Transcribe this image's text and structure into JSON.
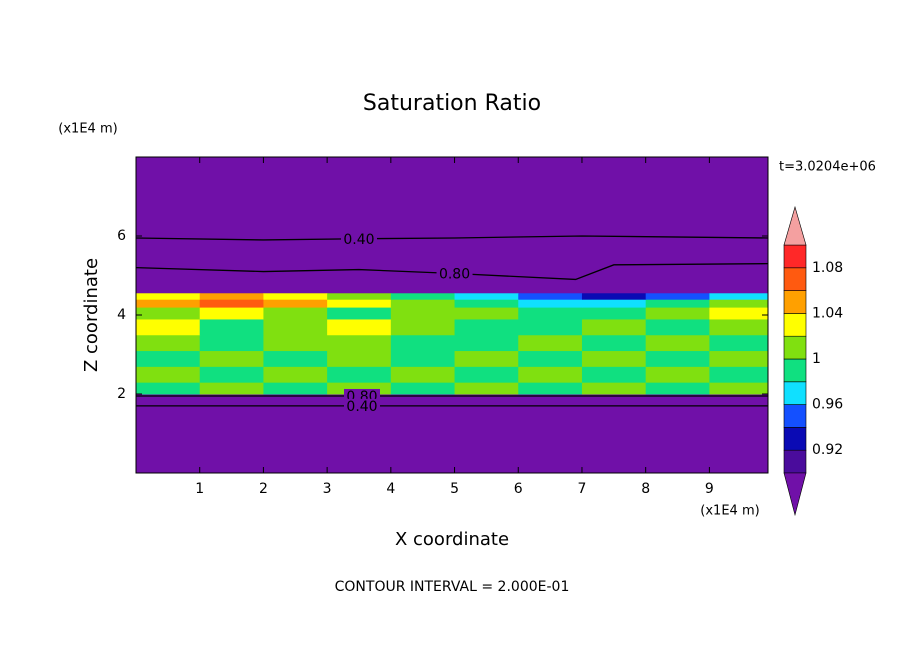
{
  "chart_data": {
    "type": "contour",
    "title": "Saturation Ratio",
    "subtitle": "t=3.0204e+06",
    "x_label": "X coordinate",
    "y_label": "Z coordinate",
    "x_unit": "(x1E4 m)",
    "y_unit": "(x1E4 m)",
    "footer": "CONTOUR INTERVAL = 2.000E-01",
    "xlim": [
      0,
      9.92
    ],
    "ylim": [
      0,
      8
    ],
    "xticks": [
      1,
      2,
      3,
      4,
      5,
      6,
      7,
      8,
      9
    ],
    "yticks": [
      2,
      4,
      6
    ],
    "field": {
      "x_edges": [
        0,
        1,
        2,
        3,
        4,
        5,
        6,
        7,
        8,
        9,
        9.92
      ],
      "z_edges": [
        2.0,
        2.3,
        2.7,
        3.1,
        3.5,
        3.9,
        4.2,
        4.4,
        4.55
      ],
      "values": [
        [
          0.99,
          1.01,
          0.99,
          1.01,
          0.99,
          1.0,
          0.99,
          1.01,
          0.99,
          1.0
        ],
        [
          1.01,
          0.99,
          1.01,
          0.99,
          1.01,
          0.99,
          1.01,
          0.99,
          1.01,
          0.99
        ],
        [
          0.99,
          1.01,
          0.99,
          1.01,
          0.99,
          1.01,
          0.99,
          1.01,
          0.99,
          1.01
        ],
        [
          1.01,
          0.99,
          1.01,
          1.01,
          0.99,
          0.99,
          1.01,
          0.99,
          1.01,
          0.99
        ],
        [
          1.03,
          0.99,
          1.01,
          1.03,
          1.01,
          0.99,
          0.99,
          1.01,
          0.99,
          1.01
        ],
        [
          1.01,
          1.03,
          1.01,
          0.99,
          1.01,
          1.01,
          0.99,
          0.99,
          1.01,
          1.03
        ],
        [
          1.05,
          1.07,
          1.05,
          1.03,
          1.01,
          0.99,
          0.97,
          0.97,
          0.99,
          1.01
        ],
        [
          1.03,
          1.05,
          1.03,
          1.01,
          0.99,
          0.97,
          0.95,
          0.93,
          0.95,
          0.97
        ]
      ]
    },
    "contours": [
      {
        "label": "0.40",
        "x": [
          0,
          2,
          3.5,
          5,
          7,
          9.92
        ],
        "z": [
          5.95,
          5.9,
          5.93,
          5.95,
          6.0,
          5.95
        ]
      },
      {
        "label": "0.80",
        "x": [
          0,
          2,
          3.5,
          5,
          6.9,
          7.5,
          9.92
        ],
        "z": [
          5.2,
          5.1,
          5.15,
          5.05,
          4.9,
          5.27,
          5.3
        ]
      },
      {
        "label": "0.80",
        "x": [
          0,
          9.92
        ],
        "z": [
          1.95,
          1.95
        ]
      },
      {
        "label": "0.40",
        "x": [
          0,
          9.92
        ],
        "z": [
          1.7,
          1.7
        ]
      }
    ],
    "colorbar": {
      "levels": [
        0.9,
        0.92,
        0.94,
        0.96,
        0.98,
        1.0,
        1.02,
        1.04,
        1.06,
        1.08,
        1.1
      ],
      "colors": [
        "#4a0c9c",
        "#0a0ab4",
        "#1450ff",
        "#10e0ff",
        "#10e080",
        "#80e010",
        "#ffff00",
        "#ffa000",
        "#ff5a10",
        "#ff2828"
      ],
      "under_color": "#7010a8",
      "over_color": "#f4a0a0",
      "ticks": [
        0.92,
        0.96,
        1,
        1.04,
        1.08
      ]
    }
  }
}
